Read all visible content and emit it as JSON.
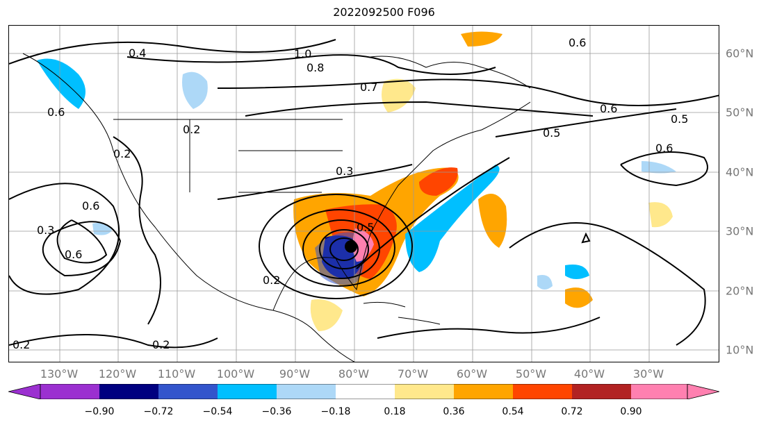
{
  "title": "2022092500 F096",
  "lon_labels": [
    "130°W",
    "120°W",
    "110°W",
    "100°W",
    "90°W",
    "80°W",
    "70°W",
    "60°W",
    "50°W",
    "40°W",
    "30°W"
  ],
  "lat_labels": [
    "60°N",
    "50°N",
    "40°N",
    "30°N",
    "20°N",
    "10°N"
  ],
  "colorbar": {
    "ticks": [
      "−0.90",
      "−0.72",
      "−0.54",
      "−0.36",
      "−0.18",
      "0.18",
      "0.36",
      "0.54",
      "0.72",
      "0.90"
    ],
    "colors": [
      "#9b30d0",
      "#000080",
      "#3355cc",
      "#00bfff",
      "#add8f7",
      "#ffffff",
      "#ffe88c",
      "#ffa500",
      "#ff4500",
      "#b22222",
      "#ff80b0"
    ]
  },
  "contour_labels": [
    "0.4",
    "1.0",
    "0.8",
    "0.7",
    "0.6",
    "0.5",
    "0.5",
    "0.6",
    "0.6",
    "0.2",
    "0.2",
    "0.3",
    "0.6",
    "0.3",
    "0.6",
    "0.6",
    "0.5",
    "0.2",
    "0.2",
    "0.2"
  ]
}
